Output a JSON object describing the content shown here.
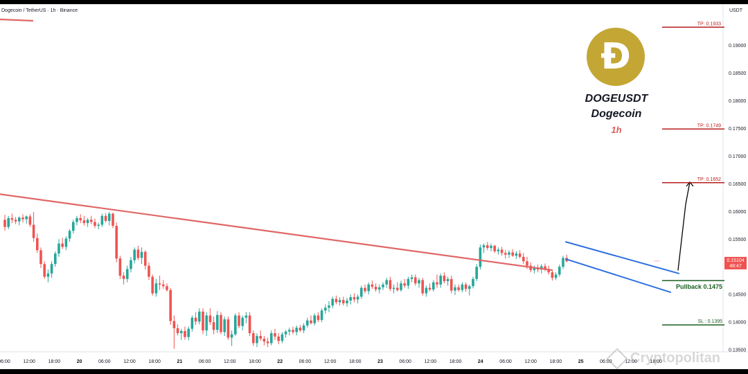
{
  "header": {
    "title": "Dogecoin / TetherUS · 1h · Binance",
    "currency": "USDT"
  },
  "badge": {
    "symbol": "DOGEUSDT",
    "name": "Dogecoin",
    "timeframe": "1h",
    "logo_glyph": "Ð",
    "logo_color": "#c3a634"
  },
  "watermark": {
    "text": "Cryptopolitan",
    "icon": "diamond-icon"
  },
  "colors": {
    "up": "#26a69a",
    "down": "#ef5350",
    "resistance": "#e06666",
    "channel": "#2e6fe0",
    "tp": "#b71c1c",
    "support": "#1b5e20"
  },
  "chart_data": {
    "type": "candlestick",
    "title": "Dogecoin / TetherUS · 1h · Binance",
    "ylabel": "USDT",
    "ylim": [
      0.13463,
      0.19747
    ],
    "y_ticks": [
      0.135,
      0.14,
      0.145,
      0.15,
      0.155,
      0.16,
      0.165,
      0.17,
      0.175,
      0.18,
      0.185,
      0.19
    ],
    "x_ticks": [
      "06:00",
      "12:00",
      "18:00",
      "20",
      "06:00",
      "12:00",
      "18:00",
      "21",
      "06:00",
      "12:00",
      "18:00",
      "22",
      "06:00",
      "12:00",
      "18:00",
      "23",
      "06:00",
      "12:00",
      "18:00",
      "24",
      "06:00",
      "12:00",
      "18:00",
      "25",
      "06:00",
      "12:00",
      "18:00"
    ],
    "x_range": [
      0,
      1050
    ],
    "candles": [
      [
        0.1585,
        0.1594,
        0.1565,
        0.1572
      ],
      [
        0.1572,
        0.1592,
        0.1568,
        0.1588
      ],
      [
        0.1588,
        0.1596,
        0.1579,
        0.1585
      ],
      [
        0.1585,
        0.159,
        0.1577,
        0.1582
      ],
      [
        0.1582,
        0.1591,
        0.1575,
        0.1589
      ],
      [
        0.1589,
        0.1595,
        0.158,
        0.1586
      ],
      [
        0.1586,
        0.1593,
        0.1578,
        0.1591
      ],
      [
        0.1591,
        0.1595,
        0.1572,
        0.1576
      ],
      [
        0.1576,
        0.1599,
        0.1545,
        0.1552
      ],
      [
        0.1552,
        0.156,
        0.1525,
        0.153
      ],
      [
        0.153,
        0.1535,
        0.1498,
        0.1505
      ],
      [
        0.1505,
        0.151,
        0.1478,
        0.1482
      ],
      [
        0.1482,
        0.1495,
        0.1472,
        0.1488
      ],
      [
        0.1488,
        0.151,
        0.148,
        0.1505
      ],
      [
        0.1505,
        0.1528,
        0.15,
        0.1524
      ],
      [
        0.1524,
        0.155,
        0.1518,
        0.1542
      ],
      [
        0.1542,
        0.1552,
        0.1532,
        0.1536
      ],
      [
        0.1536,
        0.1555,
        0.153,
        0.1551
      ],
      [
        0.1551,
        0.1568,
        0.1545,
        0.1565
      ],
      [
        0.1565,
        0.1585,
        0.156,
        0.1581
      ],
      [
        0.1581,
        0.1592,
        0.1575,
        0.1588
      ],
      [
        0.1588,
        0.1595,
        0.1579,
        0.1584
      ],
      [
        0.1584,
        0.1592,
        0.1575,
        0.1579
      ],
      [
        0.1579,
        0.1588,
        0.1572,
        0.1585
      ],
      [
        0.1585,
        0.1592,
        0.1577,
        0.1581
      ],
      [
        0.1581,
        0.1587,
        0.157,
        0.1574
      ],
      [
        0.1574,
        0.158,
        0.1568,
        0.1576
      ],
      [
        0.1576,
        0.1596,
        0.1572,
        0.1592
      ],
      [
        0.1592,
        0.1597,
        0.158,
        0.1583
      ],
      [
        0.1583,
        0.1599,
        0.1575,
        0.1596
      ],
      [
        0.1596,
        0.1598,
        0.157,
        0.1574
      ],
      [
        0.1574,
        0.158,
        0.1508,
        0.1515
      ],
      [
        0.1515,
        0.152,
        0.1478,
        0.1484
      ],
      [
        0.1484,
        0.149,
        0.1468,
        0.1478
      ],
      [
        0.1478,
        0.1502,
        0.1472,
        0.1496
      ],
      [
        0.1496,
        0.1518,
        0.149,
        0.1512
      ],
      [
        0.1512,
        0.1535,
        0.1506,
        0.1531
      ],
      [
        0.1531,
        0.1538,
        0.1512,
        0.1516
      ],
      [
        0.1516,
        0.1535,
        0.1505,
        0.1527
      ],
      [
        0.1527,
        0.153,
        0.1495,
        0.1502
      ],
      [
        0.1502,
        0.1508,
        0.1476,
        0.1482
      ],
      [
        0.1482,
        0.1486,
        0.1448,
        0.1452
      ],
      [
        0.1452,
        0.1478,
        0.1446,
        0.147
      ],
      [
        0.147,
        0.1484,
        0.1458,
        0.1468
      ],
      [
        0.1468,
        0.1476,
        0.146,
        0.1465
      ],
      [
        0.1465,
        0.147,
        0.1455,
        0.1458
      ],
      [
        0.1458,
        0.1462,
        0.1395,
        0.1402
      ],
      [
        0.1402,
        0.1412,
        0.1352,
        0.1389
      ],
      [
        0.1389,
        0.1396,
        0.1376,
        0.138
      ],
      [
        0.138,
        0.1388,
        0.1368,
        0.1384
      ],
      [
        0.1384,
        0.1392,
        0.1368,
        0.1373
      ],
      [
        0.1373,
        0.1392,
        0.1367,
        0.1388
      ],
      [
        0.1388,
        0.1412,
        0.1383,
        0.1408
      ],
      [
        0.1408,
        0.1418,
        0.1395,
        0.1401
      ],
      [
        0.1401,
        0.1425,
        0.1396,
        0.1419
      ],
      [
        0.1419,
        0.1425,
        0.1378,
        0.1385
      ],
      [
        0.1385,
        0.1418,
        0.1375,
        0.1412
      ],
      [
        0.1412,
        0.1425,
        0.1395,
        0.14
      ],
      [
        0.14,
        0.141,
        0.1378,
        0.1386
      ],
      [
        0.1386,
        0.142,
        0.138,
        0.1413
      ],
      [
        0.1413,
        0.1418,
        0.1378,
        0.1382
      ],
      [
        0.1382,
        0.141,
        0.1375,
        0.1405
      ],
      [
        0.1405,
        0.141,
        0.1368,
        0.1372
      ],
      [
        0.1372,
        0.1385,
        0.1357,
        0.1378
      ],
      [
        0.1378,
        0.1416,
        0.1375,
        0.1412
      ],
      [
        0.1412,
        0.1418,
        0.1389,
        0.1393
      ],
      [
        0.1393,
        0.1412,
        0.1385,
        0.1408
      ],
      [
        0.1408,
        0.1418,
        0.1398,
        0.1412
      ],
      [
        0.1412,
        0.1418,
        0.1375,
        0.138
      ],
      [
        0.138,
        0.1385,
        0.1357,
        0.1362
      ],
      [
        0.1362,
        0.138,
        0.1355,
        0.1375
      ],
      [
        0.1375,
        0.1385,
        0.1366,
        0.137
      ],
      [
        0.137,
        0.1375,
        0.1358,
        0.1365
      ],
      [
        0.1365,
        0.1372,
        0.1355,
        0.1362
      ],
      [
        0.1362,
        0.1385,
        0.1358,
        0.138
      ],
      [
        0.138,
        0.1388,
        0.1368,
        0.1374
      ],
      [
        0.1374,
        0.138,
        0.136,
        0.1366
      ],
      [
        0.1366,
        0.1382,
        0.1362,
        0.1378
      ],
      [
        0.1378,
        0.1386,
        0.1372,
        0.1383
      ],
      [
        0.1383,
        0.139,
        0.1376,
        0.1386
      ],
      [
        0.1386,
        0.1392,
        0.1378,
        0.1382
      ],
      [
        0.1382,
        0.1394,
        0.1376,
        0.139
      ],
      [
        0.139,
        0.1395,
        0.1382,
        0.1385
      ],
      [
        0.1385,
        0.1398,
        0.138,
        0.1394
      ],
      [
        0.1394,
        0.1408,
        0.139,
        0.1403
      ],
      [
        0.1403,
        0.1412,
        0.1396,
        0.1398
      ],
      [
        0.1398,
        0.1416,
        0.1394,
        0.1412
      ],
      [
        0.1412,
        0.1418,
        0.14,
        0.1404
      ],
      [
        0.1404,
        0.1425,
        0.14,
        0.1421
      ],
      [
        0.1421,
        0.1432,
        0.1415,
        0.1426
      ],
      [
        0.1426,
        0.1438,
        0.1418,
        0.143
      ],
      [
        0.143,
        0.1446,
        0.1425,
        0.1442
      ],
      [
        0.1442,
        0.1448,
        0.1432,
        0.1436
      ],
      [
        0.1436,
        0.1445,
        0.143,
        0.144
      ],
      [
        0.144,
        0.1446,
        0.143,
        0.1434
      ],
      [
        0.1434,
        0.1444,
        0.1428,
        0.1439
      ],
      [
        0.1439,
        0.145,
        0.1432,
        0.1445
      ],
      [
        0.1445,
        0.1452,
        0.1436,
        0.1441
      ],
      [
        0.1441,
        0.145,
        0.1434,
        0.1446
      ],
      [
        0.1446,
        0.1466,
        0.1442,
        0.1462
      ],
      [
        0.1462,
        0.1468,
        0.1452,
        0.1456
      ],
      [
        0.1456,
        0.1472,
        0.145,
        0.1468
      ],
      [
        0.1468,
        0.1475,
        0.146,
        0.1464
      ],
      [
        0.1464,
        0.147,
        0.1455,
        0.1459
      ],
      [
        0.1459,
        0.1468,
        0.1452,
        0.1463
      ],
      [
        0.1463,
        0.1472,
        0.1458,
        0.1468
      ],
      [
        0.1468,
        0.148,
        0.1462,
        0.1476
      ],
      [
        0.1476,
        0.1482,
        0.1456,
        0.146
      ],
      [
        0.146,
        0.1468,
        0.1452,
        0.1462
      ],
      [
        0.1462,
        0.1472,
        0.1455,
        0.1458
      ],
      [
        0.1458,
        0.1475,
        0.1455,
        0.147
      ],
      [
        0.147,
        0.1478,
        0.1462,
        0.1466
      ],
      [
        0.1466,
        0.1482,
        0.146,
        0.1478
      ],
      [
        0.1478,
        0.1486,
        0.1472,
        0.1481
      ],
      [
        0.1481,
        0.1486,
        0.1466,
        0.147
      ],
      [
        0.147,
        0.148,
        0.1462,
        0.1476
      ],
      [
        0.1476,
        0.148,
        0.1448,
        0.1452
      ],
      [
        0.1452,
        0.1466,
        0.1446,
        0.1462
      ],
      [
        0.1462,
        0.147,
        0.1456,
        0.1459
      ],
      [
        0.1459,
        0.1476,
        0.1455,
        0.1472
      ],
      [
        0.1472,
        0.1486,
        0.1462,
        0.1468
      ],
      [
        0.1468,
        0.1488,
        0.1462,
        0.1484
      ],
      [
        0.1484,
        0.149,
        0.147,
        0.1474
      ],
      [
        0.1474,
        0.1482,
        0.1466,
        0.1478
      ],
      [
        0.1478,
        0.1484,
        0.1452,
        0.1457
      ],
      [
        0.1457,
        0.1468,
        0.1449,
        0.1463
      ],
      [
        0.1463,
        0.1468,
        0.1455,
        0.1458
      ],
      [
        0.1458,
        0.1472,
        0.1454,
        0.1468
      ],
      [
        0.1468,
        0.1472,
        0.1455,
        0.146
      ],
      [
        0.146,
        0.1468,
        0.1448,
        0.1465
      ],
      [
        0.1465,
        0.1482,
        0.1461,
        0.1478
      ],
      [
        0.1478,
        0.1505,
        0.1474,
        0.15
      ],
      [
        0.15,
        0.154,
        0.1495,
        0.1535
      ],
      [
        0.1535,
        0.1542,
        0.1525,
        0.1539
      ],
      [
        0.1539,
        0.1545,
        0.153,
        0.1534
      ],
      [
        0.1534,
        0.1542,
        0.1528,
        0.1538
      ],
      [
        0.1538,
        0.154,
        0.1525,
        0.1528
      ],
      [
        0.1528,
        0.1535,
        0.1522,
        0.1531
      ],
      [
        0.1531,
        0.1536,
        0.152,
        0.1525
      ],
      [
        0.1525,
        0.153,
        0.1515,
        0.1522
      ],
      [
        0.1522,
        0.153,
        0.1516,
        0.1526
      ],
      [
        0.1526,
        0.1532,
        0.1518,
        0.152
      ],
      [
        0.152,
        0.1528,
        0.1514,
        0.1524
      ],
      [
        0.1524,
        0.153,
        0.1515,
        0.1518
      ],
      [
        0.1518,
        0.1525,
        0.1505,
        0.151
      ],
      [
        0.151,
        0.1518,
        0.1496,
        0.1502
      ],
      [
        0.1502,
        0.1508,
        0.149,
        0.1494
      ],
      [
        0.1494,
        0.1502,
        0.1488,
        0.1498
      ],
      [
        0.1498,
        0.1504,
        0.149,
        0.1495
      ],
      [
        0.1495,
        0.1505,
        0.1488,
        0.1501
      ],
      [
        0.1501,
        0.1506,
        0.1492,
        0.1496
      ],
      [
        0.1496,
        0.1502,
        0.1486,
        0.149
      ],
      [
        0.149,
        0.1495,
        0.1475,
        0.148
      ],
      [
        0.148,
        0.149,
        0.1476,
        0.1486
      ],
      [
        0.1486,
        0.1504,
        0.1482,
        0.15
      ],
      [
        0.15,
        0.152,
        0.1496,
        0.1516
      ],
      [
        0.1516,
        0.1522,
        0.1508,
        0.151
      ]
    ],
    "last_price": "0.15104",
    "countdown": "48:47",
    "lines": {
      "resistance": [
        [
          -10,
          0.1633
        ],
        [
          797,
          0.1494
        ]
      ],
      "channel_upper": [
        [
          817,
          0.1545
        ],
        [
          980,
          0.1488
        ]
      ],
      "channel_lower": [
        [
          817,
          0.1514
        ],
        [
          968,
          0.1454
        ]
      ],
      "projection": [
        [
          979,
          0.1494
        ],
        [
          990,
          0.1613
        ],
        [
          996,
          0.1653
        ]
      ]
    },
    "levels": [
      {
        "label": "TP: 0.1933",
        "value": 0.1933,
        "type": "tp"
      },
      {
        "label": "TP: 0.1749",
        "value": 0.1749,
        "type": "tp"
      },
      {
        "label": "TP: 0.1652",
        "value": 0.1652,
        "type": "tp"
      },
      {
        "label": "Pullback 0.1475",
        "value": 0.1475,
        "type": "support"
      },
      {
        "label": "SL : 0.1395",
        "value": 0.1395,
        "type": "support"
      }
    ]
  }
}
